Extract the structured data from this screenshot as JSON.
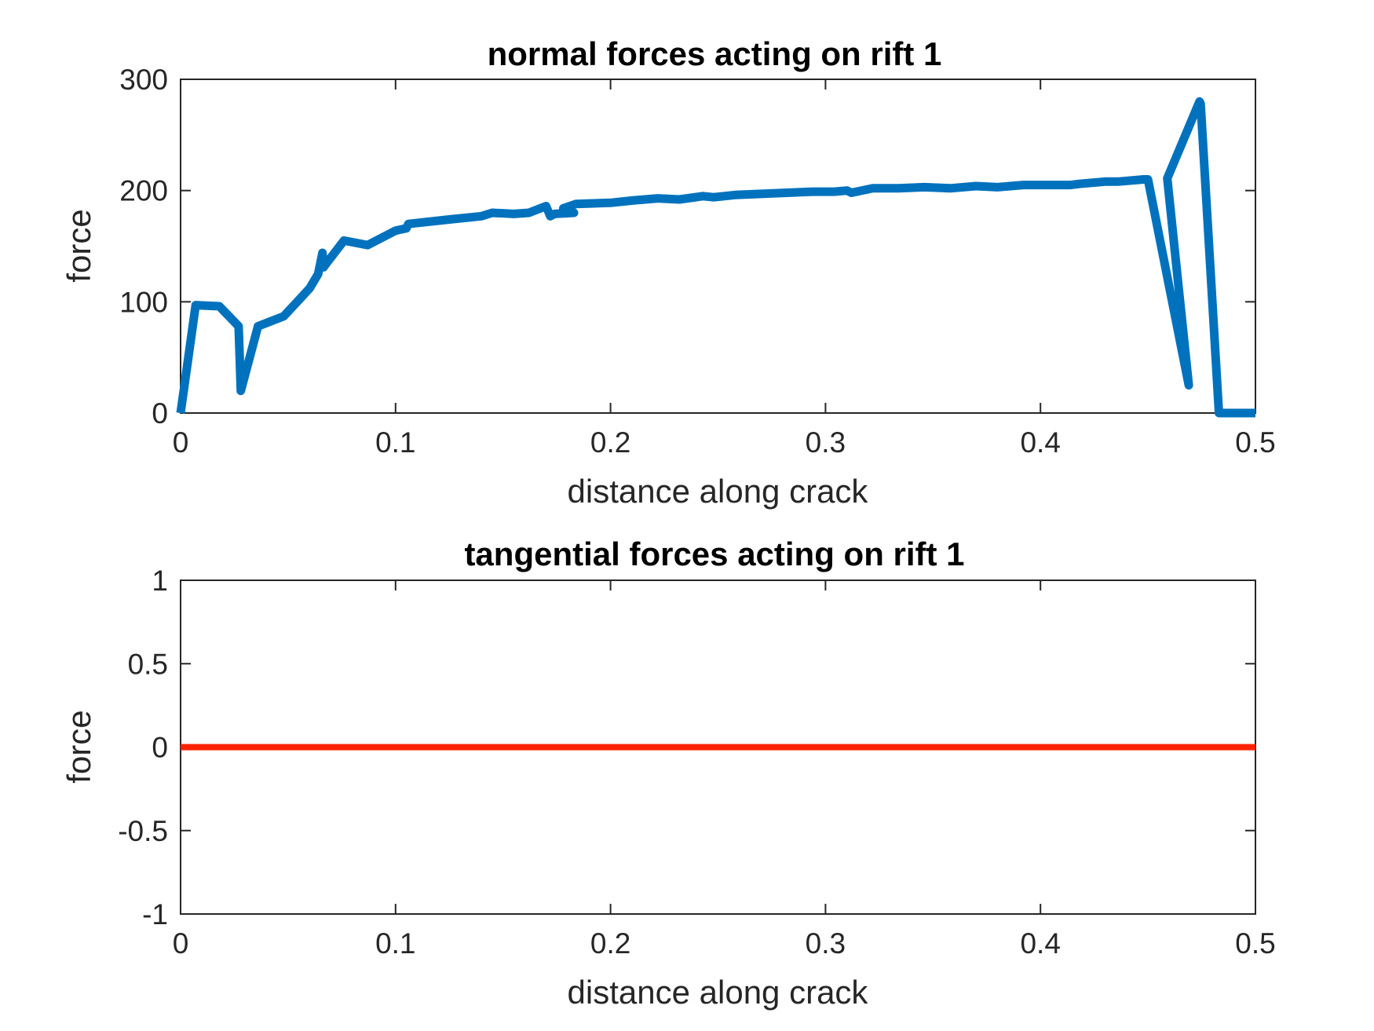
{
  "chart_data": [
    {
      "type": "line",
      "title": "normal forces acting on rift 1",
      "xlabel": "distance along crack",
      "ylabel": "force",
      "xlim": [
        0,
        0.5
      ],
      "ylim": [
        0,
        300
      ],
      "xticks": [
        0,
        0.1,
        0.2,
        0.3,
        0.4,
        0.5
      ],
      "xtick_labels": [
        "0",
        "0.1",
        "0.2",
        "0.3",
        "0.4",
        "0.5"
      ],
      "yticks": [
        0,
        100,
        200,
        300
      ],
      "ytick_labels": [
        "0",
        "100",
        "200",
        "300"
      ],
      "grid": false,
      "color": "#0072BD",
      "series": [
        {
          "x": [
            0,
            0.007,
            0.018,
            0.027,
            0.0275,
            0.028,
            0.036,
            0.048,
            0.06,
            0.064,
            0.066,
            0.0665,
            0.068,
            0.076,
            0.087,
            0.1,
            0.105,
            0.106,
            0.125,
            0.14,
            0.145,
            0.155,
            0.162,
            0.17,
            0.172,
            0.174,
            0.183,
            0.179,
            0.178,
            0.184,
            0.2,
            0.21,
            0.222,
            0.232,
            0.243,
            0.248,
            0.258,
            0.27,
            0.282,
            0.294,
            0.304,
            0.31,
            0.312,
            0.322,
            0.334,
            0.346,
            0.358,
            0.37,
            0.38,
            0.392,
            0.402,
            0.414,
            0.418,
            0.43,
            0.436,
            0.448,
            0.45,
            0.469,
            0.459,
            0.474,
            0.4745,
            0.483,
            0.488,
            0.5
          ],
          "y": [
            0,
            97,
            96,
            78,
            50,
            20,
            78,
            87,
            112,
            125,
            144,
            131,
            135,
            155,
            151,
            164,
            166,
            170,
            174,
            177,
            180,
            179,
            180,
            186,
            177,
            179,
            180,
            180,
            184,
            188,
            189,
            191,
            193,
            192,
            195,
            194,
            196,
            197,
            198,
            199,
            199,
            200,
            198,
            202,
            202,
            203,
            202,
            204,
            203,
            205,
            205,
            205,
            206,
            208,
            208,
            210,
            210,
            25,
            211,
            280,
            278,
            0,
            0,
            0
          ]
        }
      ]
    },
    {
      "type": "line",
      "title": "tangential forces acting on rift 1",
      "xlabel": "distance along crack",
      "ylabel": "force",
      "xlim": [
        0,
        0.5
      ],
      "ylim": [
        -1,
        1
      ],
      "xticks": [
        0,
        0.1,
        0.2,
        0.3,
        0.4,
        0.5
      ],
      "xtick_labels": [
        "0",
        "0.1",
        "0.2",
        "0.3",
        "0.4",
        "0.5"
      ],
      "yticks": [
        -1,
        -0.5,
        0,
        0.5,
        1
      ],
      "ytick_labels": [
        "-1",
        "-0.5",
        "0",
        "0.5",
        "1"
      ],
      "grid": false,
      "color": "#FF2200",
      "series": [
        {
          "x": [
            0,
            0.5
          ],
          "y": [
            0,
            0
          ]
        }
      ]
    }
  ]
}
